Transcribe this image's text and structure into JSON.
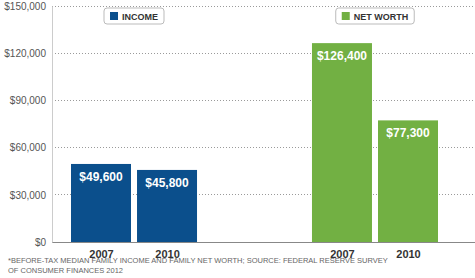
{
  "chart_data": {
    "type": "bar",
    "categories": [
      "2007",
      "2010",
      "2007",
      "2010"
    ],
    "series": [
      {
        "name": "INCOME",
        "color": "#0b4f8c",
        "values": [
          49600,
          45800,
          null,
          null
        ],
        "value_labels": [
          "$49,600",
          "$45,800",
          null,
          null
        ]
      },
      {
        "name": "NET WORTH",
        "color": "#72b043",
        "values": [
          null,
          null,
          126400,
          77300
        ],
        "value_labels": [
          null,
          null,
          "$126,400",
          "$77,300"
        ]
      }
    ],
    "ylim": [
      0,
      150000
    ],
    "yticks": [
      {
        "value": 0,
        "label": "$0"
      },
      {
        "value": 30000,
        "label": "$30,000"
      },
      {
        "value": 60000,
        "label": "$60,000"
      },
      {
        "value": 90000,
        "label": "$90,000"
      },
      {
        "value": 120000,
        "label": "$120,000"
      },
      {
        "value": 150000,
        "label": "$150,000"
      }
    ],
    "grid": true,
    "data_labels": true,
    "annotations": [
      "*BEFORE-TAX MEDIAN FAMILY INCOME AND FAMILY NET WORTH; SOURCE: FEDERAL RESERVE SURVEY",
      "OF CONSUMER FINANCES 2012"
    ]
  }
}
